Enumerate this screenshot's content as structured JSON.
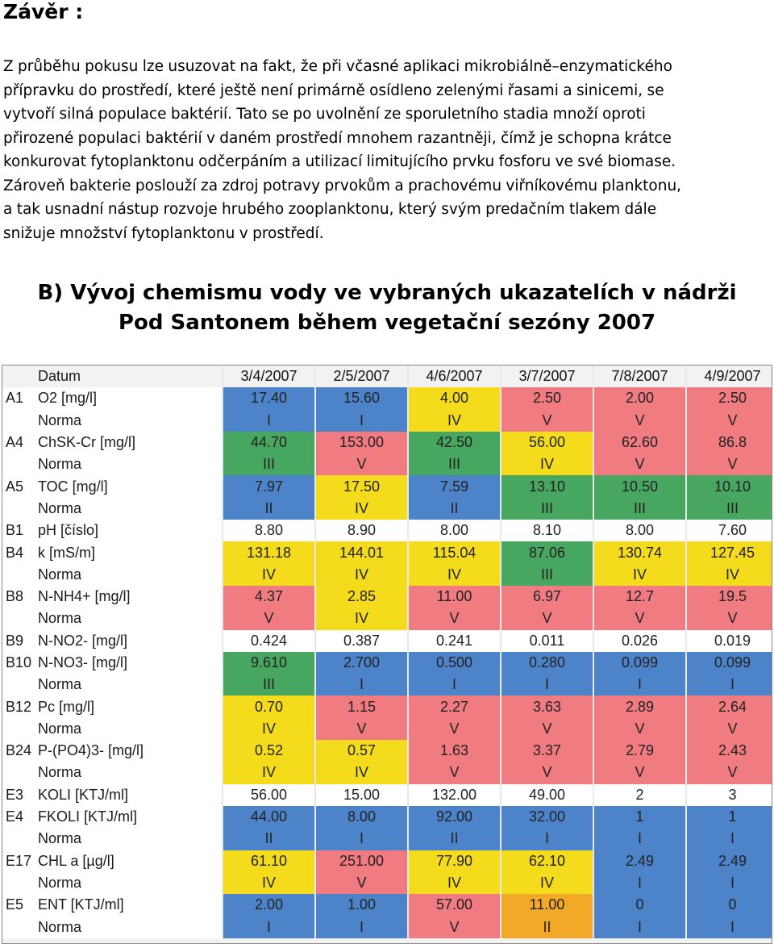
{
  "heading": "Závěr :",
  "paragraph_lines": [
    "Z průběhu pokusu lze usuzovat na fakt, že při včasné aplikaci mikrobiálně–enzymatického",
    "přípravku do prostředí, které ještě není primárně osídleno zelenými řasami a sinicemi, se",
    "vytvoří silná populace baktérií. Tato se po uvolnění ze sporuletního stadia množí oproti",
    "přirozené populaci baktérií v daném prostředí mnohem razantněji, čímž je schopna krátce",
    "konkurovat fytoplanktonu odčerpáním  a utilizací limitujícího prvku fosforu ve své biomase.",
    " Zároveň bakterie poslouží za zdroj potravy prvokům a prachovému viřníkovému planktonu,",
    "a tak usnadní nástup rozvoje hrubého zooplanktonu, který svým predačním tlakem dále",
    "snižuje množství fytoplanktonu v prostředí."
  ],
  "section_title_lines": [
    "B) Vývoj chemismu vody ve vybraných ukazatelích v nádrži",
    "Pod Santonem během vegetační sezóny 2007"
  ],
  "colors": {
    "blue": "#4c83c9",
    "green": "#47a660",
    "yellow": "#f4dc1c",
    "orange": "#f3a928",
    "red": "#f07b80",
    "white": "#ffffff",
    "header": "#f2f2f2"
  },
  "table": {
    "header": {
      "code": "",
      "name": "Datum",
      "dates": [
        "3/4/2007",
        "2/5/2007",
        "4/6/2007",
        "3/7/2007",
        "7/8/2007",
        "4/9/2007"
      ]
    },
    "rows": [
      {
        "code": "A1",
        "name": "O2 [mg/l]",
        "values": [
          "17.40",
          "15.60",
          "4.00",
          "2.50",
          "2.00",
          "2.50"
        ],
        "colors": [
          "blue",
          "blue",
          "yellow",
          "red",
          "red",
          "red"
        ]
      },
      {
        "code": "",
        "name": "Norma",
        "values": [
          "I",
          "I",
          "IV",
          "V",
          "V",
          "V"
        ],
        "colors": [
          "blue",
          "blue",
          "yellow",
          "red",
          "red",
          "red"
        ]
      },
      {
        "code": "A4",
        "name": "ChSK-Cr [mg/l]",
        "values": [
          "44.70",
          "153.00",
          "42.50",
          "56.00",
          "62.60",
          "86.8"
        ],
        "colors": [
          "green",
          "red",
          "green",
          "yellow",
          "red",
          "red"
        ]
      },
      {
        "code": "",
        "name": "Norma",
        "values": [
          "III",
          "V",
          "III",
          "IV",
          "V",
          "V"
        ],
        "colors": [
          "green",
          "red",
          "green",
          "yellow",
          "red",
          "red"
        ]
      },
      {
        "code": "A5",
        "name": "TOC [mg/l]",
        "values": [
          "7.97",
          "17.50",
          "7.59",
          "13.10",
          "10.50",
          "10.10"
        ],
        "colors": [
          "blue",
          "yellow",
          "blue",
          "green",
          "green",
          "green"
        ]
      },
      {
        "code": "",
        "name": "Norma",
        "values": [
          "II",
          "IV",
          "II",
          "III",
          "III",
          "III"
        ],
        "colors": [
          "blue",
          "yellow",
          "blue",
          "green",
          "green",
          "green"
        ]
      },
      {
        "code": "B1",
        "name": "pH [číslo]",
        "values": [
          "8.80",
          "8.90",
          "8.00",
          "8.10",
          "8.00",
          "7.60"
        ],
        "colors": [
          "white",
          "white",
          "white",
          "white",
          "white",
          "white"
        ]
      },
      {
        "code": "B4",
        "name": "k [mS/m]",
        "values": [
          "131.18",
          "144.01",
          "115.04",
          "87.06",
          "130.74",
          "127.45"
        ],
        "colors": [
          "yellow",
          "yellow",
          "yellow",
          "green",
          "yellow",
          "yellow"
        ]
      },
      {
        "code": "",
        "name": "Norma",
        "values": [
          "IV",
          "IV",
          "IV",
          "III",
          "IV",
          "IV"
        ],
        "colors": [
          "yellow",
          "yellow",
          "yellow",
          "green",
          "yellow",
          "yellow"
        ]
      },
      {
        "code": "B8",
        "name": "N-NH4+ [mg/l]",
        "values": [
          "4.37",
          "2.85",
          "11.00",
          "6.97",
          "12.7",
          "19.5"
        ],
        "colors": [
          "red",
          "yellow",
          "red",
          "red",
          "red",
          "red"
        ]
      },
      {
        "code": "",
        "name": "Norma",
        "values": [
          "V",
          "IV",
          "V",
          "V",
          "V",
          "V"
        ],
        "colors": [
          "red",
          "yellow",
          "red",
          "red",
          "red",
          "red"
        ]
      },
      {
        "code": "B9",
        "name": "N-NO2- [mg/l]",
        "values": [
          "0.424",
          "0.387",
          "0.241",
          "0.011",
          "0.026",
          "0.019"
        ],
        "colors": [
          "white",
          "white",
          "white",
          "white",
          "white",
          "white"
        ]
      },
      {
        "code": "B10",
        "name": "N-NO3- [mg/l]",
        "values": [
          "9.610",
          "2.700",
          "0.500",
          "0.280",
          "0.099",
          "0.099"
        ],
        "colors": [
          "green",
          "blue",
          "blue",
          "blue",
          "blue",
          "blue"
        ]
      },
      {
        "code": "",
        "name": "Norma",
        "values": [
          "III",
          "I",
          "I",
          "I",
          "I",
          "I"
        ],
        "colors": [
          "green",
          "blue",
          "blue",
          "blue",
          "blue",
          "blue"
        ]
      },
      {
        "code": "B12",
        "name": "Pc [mg/l]",
        "values": [
          "0.70",
          "1.15",
          "2.27",
          "3.63",
          "2.89",
          "2.64"
        ],
        "colors": [
          "yellow",
          "red",
          "red",
          "red",
          "red",
          "red"
        ]
      },
      {
        "code": "",
        "name": "Norma",
        "values": [
          "IV",
          "V",
          "V",
          "V",
          "V",
          "V"
        ],
        "colors": [
          "yellow",
          "red",
          "red",
          "red",
          "red",
          "red"
        ]
      },
      {
        "code": "B24",
        "name": "P-(PO4)3- [mg/l]",
        "values": [
          "0.52",
          "0.57",
          "1.63",
          "3.37",
          "2.79",
          "2.43"
        ],
        "colors": [
          "yellow",
          "yellow",
          "red",
          "red",
          "red",
          "red"
        ]
      },
      {
        "code": "",
        "name": "Norma",
        "values": [
          "IV",
          "IV",
          "V",
          "V",
          "V",
          "V"
        ],
        "colors": [
          "yellow",
          "yellow",
          "red",
          "red",
          "red",
          "red"
        ]
      },
      {
        "code": "E3",
        "name": "KOLI [KTJ/ml]",
        "values": [
          "56.00",
          "15.00",
          "132.00",
          "49.00",
          "2",
          "3"
        ],
        "colors": [
          "white",
          "white",
          "white",
          "white",
          "white",
          "white"
        ]
      },
      {
        "code": "E4",
        "name": "FKOLI [KTJ/ml]",
        "values": [
          "44.00",
          "8.00",
          "92.00",
          "32.00",
          "1",
          "1"
        ],
        "colors": [
          "blue",
          "blue",
          "blue",
          "blue",
          "blue",
          "blue"
        ]
      },
      {
        "code": "",
        "name": "Norma",
        "values": [
          "II",
          "I",
          "II",
          "I",
          "I",
          "I"
        ],
        "colors": [
          "blue",
          "blue",
          "blue",
          "blue",
          "blue",
          "blue"
        ]
      },
      {
        "code": "E17",
        "name": "CHL a [µg/l]",
        "values": [
          "61.10",
          "251.00",
          "77.90",
          "62.10",
          "2.49",
          "2.49"
        ],
        "colors": [
          "yellow",
          "red",
          "yellow",
          "yellow",
          "blue",
          "blue"
        ]
      },
      {
        "code": "",
        "name": "Norma",
        "values": [
          "IV",
          "V",
          "IV",
          "IV",
          "I",
          "I"
        ],
        "colors": [
          "yellow",
          "red",
          "yellow",
          "yellow",
          "blue",
          "blue"
        ]
      },
      {
        "code": "E5",
        "name": "ENT [KTJ/ml]",
        "values": [
          "2.00",
          "1.00",
          "57.00",
          "11.00",
          "0",
          "0"
        ],
        "colors": [
          "blue",
          "blue",
          "red",
          "orange",
          "blue",
          "blue"
        ]
      },
      {
        "code": "",
        "name": "Norma",
        "values": [
          "I",
          "I",
          "V",
          "II",
          "I",
          "I"
        ],
        "colors": [
          "blue",
          "blue",
          "red",
          "orange",
          "blue",
          "blue"
        ]
      }
    ]
  }
}
